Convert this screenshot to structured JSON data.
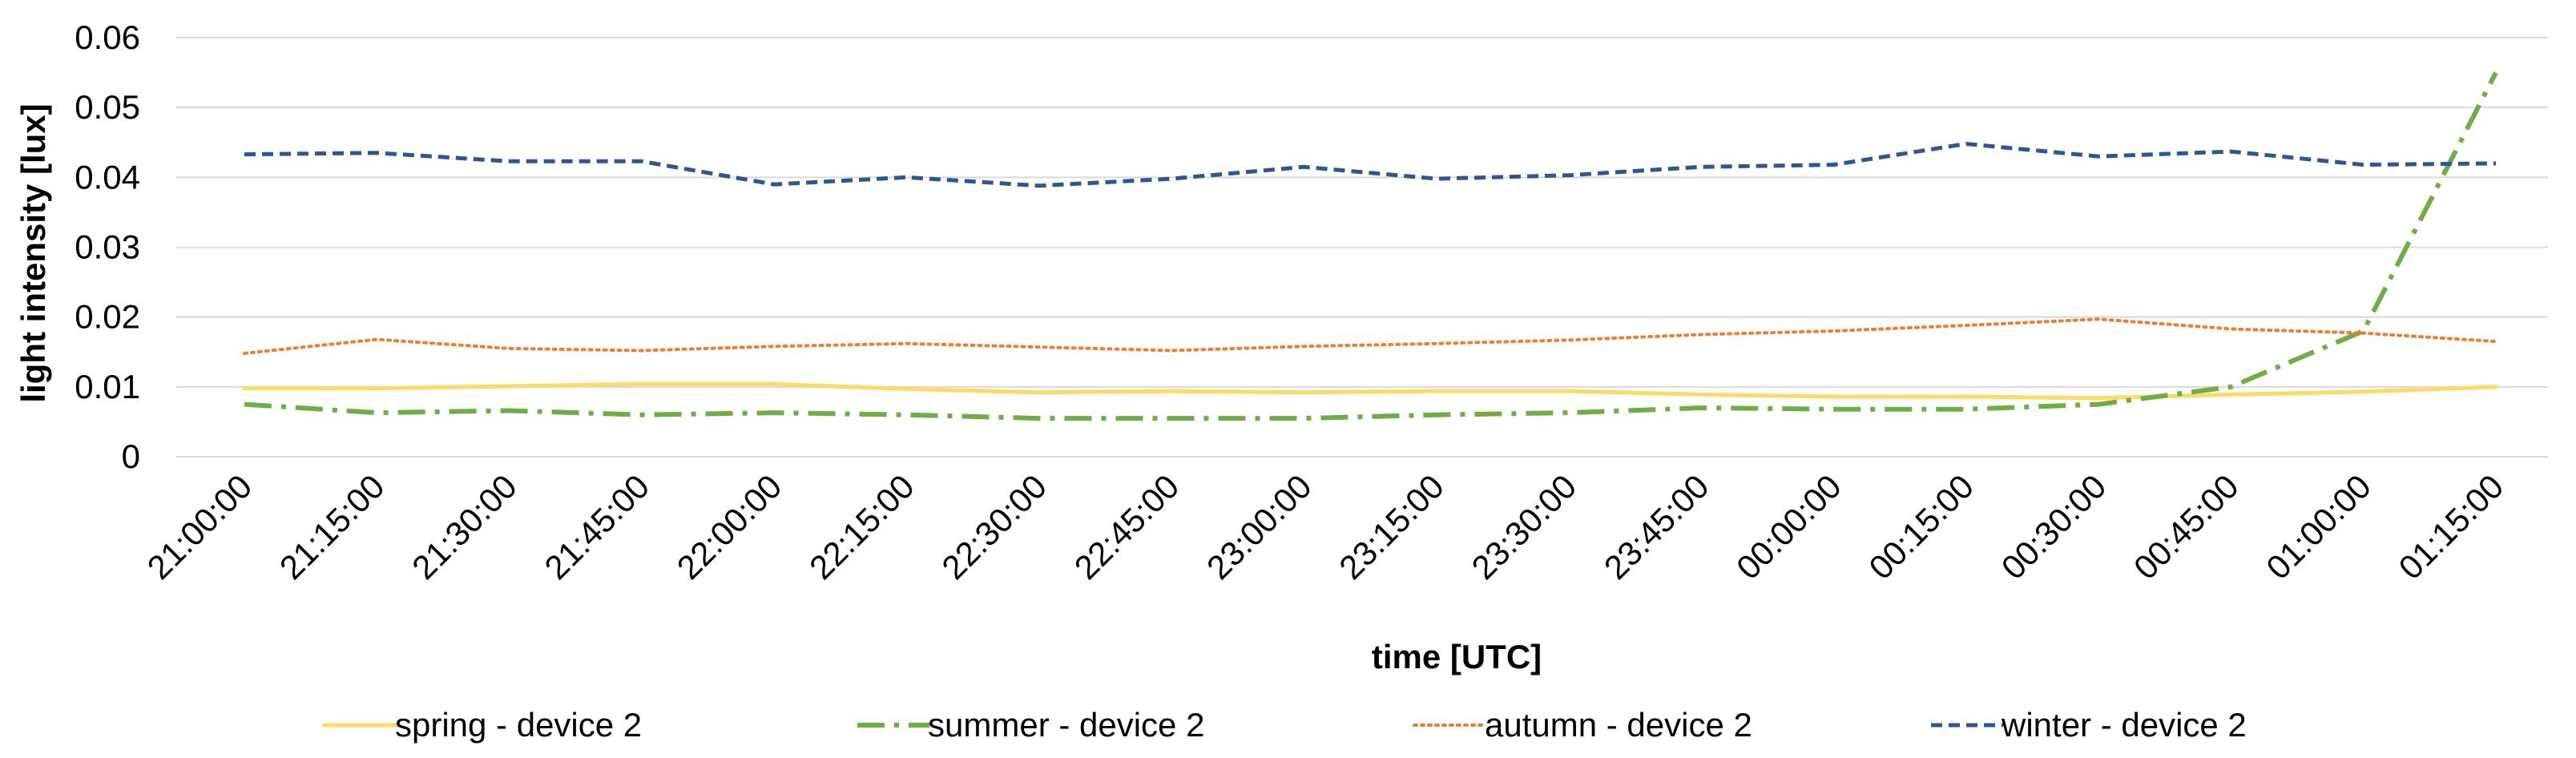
{
  "chart_data": {
    "type": "line",
    "title": "",
    "xlabel": "time [UTC]",
    "ylabel": "light intensity [lux]",
    "ylim": [
      0,
      0.06
    ],
    "yticks": [
      "0",
      "0.01",
      "0.02",
      "0.03",
      "0.04",
      "0.05",
      "0.06"
    ],
    "grid": true,
    "legend_position": "bottom",
    "categories": [
      "21:00:00",
      "21:15:00",
      "21:30:00",
      "21:45:00",
      "22:00:00",
      "22:15:00",
      "22:30:00",
      "22:45:00",
      "23:00:00",
      "23:15:00",
      "23:30:00",
      "23:45:00",
      "00:00:00",
      "00:15:00",
      "00:30:00",
      "00:45:00",
      "01:00:00",
      "01:15:00"
    ],
    "series": [
      {
        "name": "spring - device 2",
        "color": "#ffd966",
        "dash": "solid",
        "values": [
          0.0098,
          0.0098,
          0.0101,
          0.0104,
          0.0104,
          0.0097,
          0.0092,
          0.0094,
          0.0092,
          0.0094,
          0.0094,
          0.0089,
          0.0086,
          0.0086,
          0.0084,
          0.0089,
          0.0093,
          0.01
        ]
      },
      {
        "name": "summer - device 2",
        "color": "#70ad47",
        "dash": "dashdot",
        "values": [
          0.0075,
          0.0063,
          0.0066,
          0.006,
          0.0063,
          0.006,
          0.0055,
          0.0055,
          0.0055,
          0.006,
          0.0063,
          0.007,
          0.0068,
          0.0068,
          0.0075,
          0.01,
          0.018,
          0.055
        ]
      },
      {
        "name": "autumn - device 2",
        "color": "#ed7d31",
        "dash": "dotted",
        "values": [
          0.0148,
          0.0168,
          0.0155,
          0.0152,
          0.0158,
          0.0162,
          0.0157,
          0.0152,
          0.0158,
          0.0162,
          0.0167,
          0.0175,
          0.018,
          0.0188,
          0.0197,
          0.0183,
          0.0177,
          0.0165
        ]
      },
      {
        "name": "winter - device 2",
        "color": "#2f5597",
        "dash": "dashed",
        "values": [
          0.0433,
          0.0435,
          0.0423,
          0.0423,
          0.039,
          0.04,
          0.0388,
          0.0398,
          0.0415,
          0.0398,
          0.0403,
          0.0415,
          0.0418,
          0.0448,
          0.043,
          0.0437,
          0.0418,
          0.042
        ]
      }
    ]
  }
}
